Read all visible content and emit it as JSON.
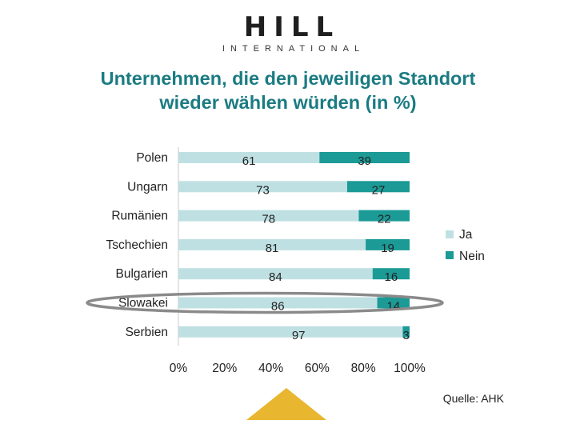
{
  "logo": {
    "main": "HILL",
    "sub": "INTERNATIONAL"
  },
  "title_line1": "Unternehmen, die den jeweiligen Standort",
  "title_line2": "wieder wählen würden (in %)",
  "source": "Quelle: AHK",
  "colors": {
    "ja": "#bfe0e3",
    "nein": "#1b9a96",
    "title": "#1b7b82",
    "highlight": "#8a8a8a",
    "triangle": "#e9b62f"
  },
  "chart_data": {
    "type": "bar",
    "orientation": "horizontal",
    "stacked": true,
    "categories": [
      "Polen",
      "Ungarn",
      "Rumänien",
      "Tschechien",
      "Bulgarien",
      "Slowakei",
      "Serbien"
    ],
    "series": [
      {
        "name": "Ja",
        "values": [
          61,
          73,
          78,
          81,
          84,
          86,
          97
        ]
      },
      {
        "name": "Nein",
        "values": [
          39,
          27,
          22,
          19,
          16,
          14,
          3
        ]
      }
    ],
    "x_ticks": [
      "0%",
      "20%",
      "40%",
      "60%",
      "80%",
      "100%"
    ],
    "xlim": [
      0,
      100
    ],
    "legend": "right",
    "grid": false,
    "highlighted_category": "Slowakei"
  }
}
